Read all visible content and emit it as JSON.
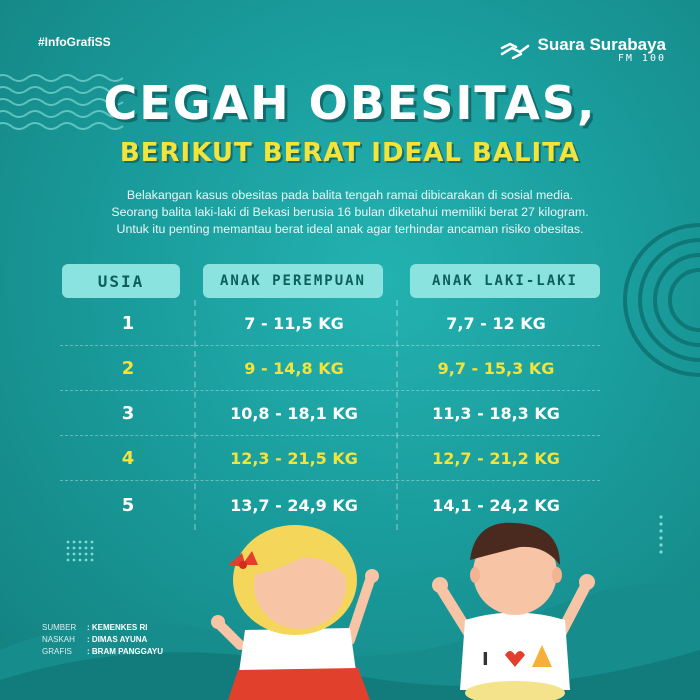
{
  "header": {
    "hashtag": "#InfoGrafiSS",
    "brand_name": "Suara Surabaya",
    "brand_sub": "FM 100"
  },
  "title": {
    "line1": "CEGAH OBESITAS,",
    "line2": "BERIKUT BERAT IDEAL BALITA"
  },
  "intro": [
    "Belakangan kasus obesitas pada balita tengah ramai dibicarakan di sosial media.",
    "Seorang balita laki-laki di Bekasi berusia 16 bulan diketahui memiliki berat 27 kilogram.",
    "Untuk itu penting memantau berat ideal anak agar terhindar ancaman risiko obesitas."
  ],
  "table": {
    "headers": {
      "age": "USIA",
      "girl": "ANAK PEREMPUAN",
      "boy": "ANAK LAKI-LAKI"
    },
    "rows": [
      {
        "age": "1",
        "girl": "7 - 11,5 KG",
        "boy": "7,7 - 12 KG",
        "highlight": false
      },
      {
        "age": "2",
        "girl": "9 - 14,8 KG",
        "boy": "9,7 - 15,3 KG",
        "highlight": true
      },
      {
        "age": "3",
        "girl": "10,8 - 18,1 KG",
        "boy": "11,3 - 18,3 KG",
        "highlight": false
      },
      {
        "age": "4",
        "girl": "12,3 - 21,5 KG",
        "boy": "12,7 - 21,2 KG",
        "highlight": true
      },
      {
        "age": "5",
        "girl": "13,7 - 24,9 KG",
        "boy": "14,1 - 24,2 KG",
        "highlight": false
      }
    ]
  },
  "credits": [
    {
      "label": "SUMBER",
      "value": ": KEMENKES RI"
    },
    {
      "label": "NASKAH",
      "value": ": DIMAS AYUNA"
    },
    {
      "label": "GRAFIS",
      "value": ": BRAM PANGGAYU"
    }
  ],
  "shirt_text": "I",
  "colors": {
    "background": "#1a9c9c",
    "accent_yellow": "#f4e33a",
    "header_pill": "#8be3df",
    "dark_teal": "#0f6e6d"
  }
}
